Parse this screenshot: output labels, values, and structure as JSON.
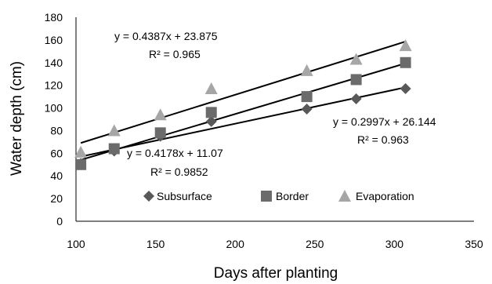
{
  "chart_data": {
    "type": "scatter",
    "title": "",
    "xlabel": "Days after planting",
    "ylabel": "Water depth (cm)",
    "xlim": [
      100,
      350
    ],
    "ylim": [
      0,
      180
    ],
    "x_ticks": [
      100,
      150,
      200,
      250,
      300,
      350
    ],
    "y_ticks": [
      0,
      20,
      40,
      60,
      80,
      100,
      120,
      140,
      160,
      180
    ],
    "grid": false,
    "legend_position": "bottom-inside",
    "series": [
      {
        "name": "Subsurface",
        "marker": "diamond",
        "color": "#595959",
        "x": [
          103,
          124,
          153,
          185,
          245,
          276,
          307
        ],
        "y": [
          51,
          62,
          75,
          88,
          99,
          108,
          117
        ],
        "trendline": {
          "slope": 0.2997,
          "intercept": 26.144,
          "equation": "y = 0.2997x + 26.144",
          "r2": "R² = 0.963"
        }
      },
      {
        "name": "Border",
        "marker": "square",
        "color": "#6b6b6b",
        "x": [
          103,
          124,
          153,
          185,
          245,
          276,
          307
        ],
        "y": [
          50,
          64,
          78,
          96,
          110,
          125,
          140
        ],
        "trendline": {
          "slope": 0.4178,
          "intercept": 11.07,
          "equation": "y = 0.4178x + 11.07",
          "r2": "R² = 0.9852"
        }
      },
      {
        "name": "Evaporation",
        "marker": "triangle",
        "color": "#a6a6a6",
        "x": [
          103,
          124,
          153,
          185,
          245,
          276,
          307
        ],
        "y": [
          61,
          80,
          94,
          117,
          133,
          143,
          155
        ],
        "trendline": {
          "slope": 0.4387,
          "intercept": 23.875,
          "equation": "y = 0.4387x + 23.875",
          "r2": "R² = 0.965"
        }
      }
    ]
  }
}
